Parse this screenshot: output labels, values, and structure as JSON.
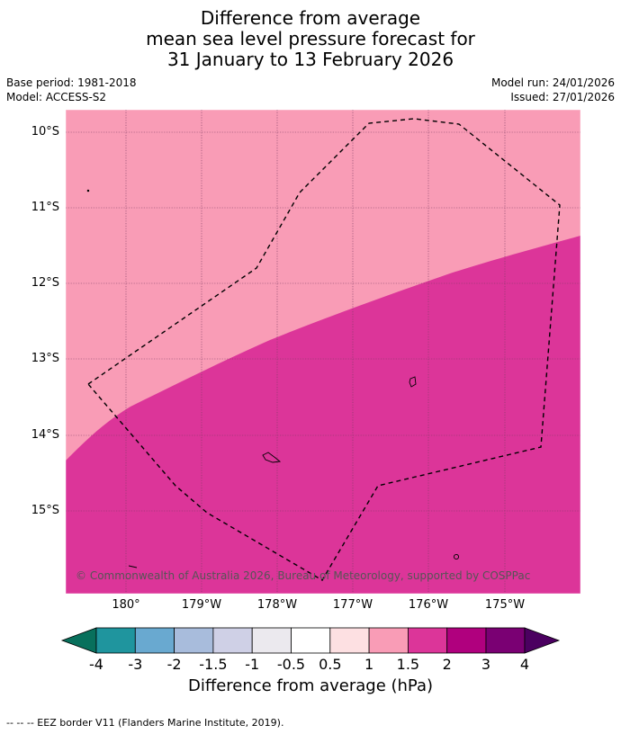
{
  "title": {
    "line1": "Difference from average",
    "line2": "mean sea level pressure forecast for",
    "line3": "31 January to 13 February 2026"
  },
  "meta": {
    "base_period": "Base period: 1981-2018",
    "model": "Model: ACCESS-S2",
    "model_run": "Model run: 24/01/2026",
    "issued": "Issued: 27/01/2026"
  },
  "map": {
    "lat_labels": [
      "10°S",
      "11°S",
      "12°S",
      "13°S",
      "14°S",
      "15°S"
    ],
    "lon_labels": [
      "180°",
      "179°W",
      "178°W",
      "177°W",
      "176°W",
      "175°W"
    ],
    "fill_colors": {
      "1_to_1.5": "#f99cb6",
      "1.5_to_2": "#dc3599"
    },
    "copyright": "© Commonwealth of Australia 2026, Bureau of Meteorology, supported by COSPPac"
  },
  "colorbar": {
    "labels": [
      "-4",
      "-3",
      "-2",
      "-1.5",
      "-1",
      "-0.5",
      "0.5",
      "1",
      "1.5",
      "2",
      "3",
      "4"
    ],
    "colors": [
      "#08705c",
      "#1f959e",
      "#69a9d0",
      "#a8bcdc",
      "#cfd0e6",
      "#ebe9ee",
      "#ffffff",
      "#fde0e2",
      "#f99cb6",
      "#dc3599",
      "#b0007e",
      "#7a0073",
      "#4b0060"
    ],
    "title": "Difference from average (hPa)"
  },
  "footer": "--  --  -- EEZ border V11 (Flanders Marine Institute, 2019)."
}
